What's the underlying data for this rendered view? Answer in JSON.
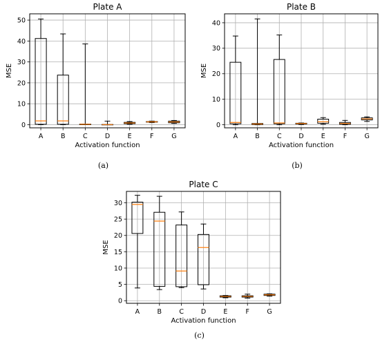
{
  "chart_data": [
    {
      "type": "box",
      "title": "Plate A",
      "xlabel": "Activation function",
      "ylabel": "MSE",
      "categories": [
        "A",
        "B",
        "C",
        "D",
        "E",
        "F",
        "G"
      ],
      "ylim": [
        -1.5,
        53
      ],
      "yticks": [
        0,
        10,
        20,
        30,
        40,
        50
      ],
      "grid": true,
      "caption": "(a)",
      "boxes": [
        {
          "whislo": 0,
          "q1": 0.2,
          "med": 1.8,
          "q3": 41.2,
          "whishi": 50.5
        },
        {
          "whislo": 0,
          "q1": 0.2,
          "med": 1.8,
          "q3": 23.7,
          "whishi": 43.4
        },
        {
          "whislo": 0,
          "q1": 0.0,
          "med": 0.2,
          "q3": 0.3,
          "whishi": 38.6
        },
        {
          "whislo": 0,
          "q1": 0.0,
          "med": 0.05,
          "q3": 0.1,
          "whishi": 1.7
        },
        {
          "whislo": 0.2,
          "q1": 0.5,
          "med": 0.8,
          "q3": 1.1,
          "whishi": 1.5
        },
        {
          "whislo": 1.0,
          "q1": 1.2,
          "med": 1.35,
          "q3": 1.5,
          "whishi": 1.7
        },
        {
          "whislo": 0.6,
          "q1": 0.9,
          "med": 1.3,
          "q3": 1.7,
          "whishi": 2.0
        }
      ]
    },
    {
      "type": "box",
      "title": "Plate B",
      "xlabel": "Activation function",
      "ylabel": "MSE",
      "categories": [
        "A",
        "B",
        "C",
        "D",
        "E",
        "F",
        "G"
      ],
      "ylim": [
        -1.2,
        43.5
      ],
      "yticks": [
        0,
        10,
        20,
        30,
        40
      ],
      "grid": true,
      "caption": "(b)",
      "boxes": [
        {
          "whislo": 0,
          "q1": 0.4,
          "med": 0.9,
          "q3": 24.5,
          "whishi": 34.8
        },
        {
          "whislo": 0,
          "q1": 0.1,
          "med": 0.3,
          "q3": 0.5,
          "whishi": 41.5
        },
        {
          "whislo": 0,
          "q1": 0.4,
          "med": 0.7,
          "q3": 25.6,
          "whishi": 35.2
        },
        {
          "whislo": 0.1,
          "q1": 0.3,
          "med": 0.5,
          "q3": 0.6,
          "whishi": 0.7
        },
        {
          "whislo": 0.2,
          "q1": 0.6,
          "med": 1.2,
          "q3": 2.2,
          "whishi": 2.8
        },
        {
          "whislo": 0.0,
          "q1": 0.2,
          "med": 0.5,
          "q3": 0.9,
          "whishi": 1.7
        },
        {
          "whislo": 1.3,
          "q1": 1.9,
          "med": 2.3,
          "q3": 2.7,
          "whishi": 3.1
        }
      ]
    },
    {
      "type": "box",
      "title": "Plate C",
      "xlabel": "Activation function",
      "ylabel": "MSE",
      "categories": [
        "A",
        "B",
        "C",
        "D",
        "E",
        "F",
        "G"
      ],
      "ylim": [
        -0.8,
        33.5
      ],
      "yticks": [
        0,
        5,
        10,
        15,
        20,
        25,
        30
      ],
      "grid": true,
      "caption": "(c)",
      "boxes": [
        {
          "whislo": 3.9,
          "q1": 20.6,
          "med": 29.5,
          "q3": 30.2,
          "whishi": 32.3
        },
        {
          "whislo": 3.4,
          "q1": 4.4,
          "med": 24.4,
          "q3": 27.1,
          "whishi": 32.0
        },
        {
          "whislo": 4.0,
          "q1": 4.3,
          "med": 9.1,
          "q3": 23.2,
          "whishi": 27.2
        },
        {
          "whislo": 3.6,
          "q1": 4.9,
          "med": 16.3,
          "q3": 20.3,
          "whishi": 23.5
        },
        {
          "whislo": 0.9,
          "q1": 1.1,
          "med": 1.3,
          "q3": 1.5,
          "whishi": 1.6
        },
        {
          "whislo": 0.8,
          "q1": 1.1,
          "med": 1.3,
          "q3": 1.5,
          "whishi": 2.0
        },
        {
          "whislo": 1.4,
          "q1": 1.6,
          "med": 1.8,
          "q3": 2.0,
          "whishi": 2.1
        }
      ]
    }
  ],
  "colors": {
    "box": "#000000",
    "median": "#ff7f0e",
    "grid": "#b0b0b0"
  }
}
